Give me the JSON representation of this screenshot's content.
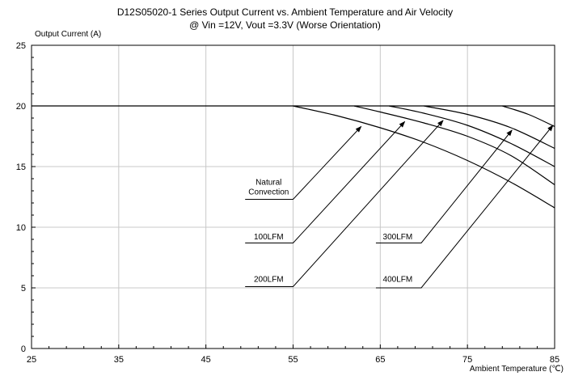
{
  "chart_data": {
    "type": "line",
    "title": "D12S05020-1 Series Output Current vs. Ambient Temperature and Air Velocity",
    "subtitle": "@ Vin =12V, Vout =3.3V (Worse Orientation)",
    "ylabel": "Output Current (A)",
    "xlabel": "Ambient Temperature (℃)",
    "xlim": [
      25,
      85
    ],
    "ylim": [
      0,
      25
    ],
    "x_ticks": [
      25,
      35,
      45,
      55,
      65,
      75,
      85
    ],
    "y_ticks": [
      0,
      5,
      10,
      15,
      20,
      25
    ],
    "grid": true,
    "series": [
      {
        "name": "Natural Convection",
        "x": [
          55,
          60,
          65,
          70,
          75,
          80,
          85
        ],
        "y": [
          20,
          19.2,
          18.2,
          17.0,
          15.5,
          13.7,
          11.6
        ]
      },
      {
        "name": "100LFM",
        "x": [
          62,
          65,
          70,
          75,
          80,
          85
        ],
        "y": [
          20,
          19.5,
          18.6,
          17.5,
          15.9,
          13.5
        ]
      },
      {
        "name": "200LFM",
        "x": [
          66,
          70,
          75,
          80,
          85
        ],
        "y": [
          20,
          19.4,
          18.4,
          16.9,
          15.0
        ]
      },
      {
        "name": "300LFM",
        "x": [
          70,
          75,
          80,
          85
        ],
        "y": [
          20,
          19.3,
          18.2,
          16.5
        ]
      },
      {
        "name": "400LFM",
        "x": [
          79,
          82,
          85
        ],
        "y": [
          20,
          19.3,
          18.3
        ]
      }
    ],
    "annotations": [
      {
        "lines": [
          "Natural",
          "Convection"
        ],
        "label_x": 52.2,
        "label_y": 12.7,
        "line": [
          [
            49.5,
            12.3
          ],
          [
            55,
            12.3
          ],
          [
            62.8,
            18.3
          ]
        ]
      },
      {
        "lines": [
          "100LFM"
        ],
        "label_x": 52.2,
        "label_y": 9.0,
        "line": [
          [
            49.5,
            8.7
          ],
          [
            55,
            8.7
          ],
          [
            67.8,
            18.7
          ]
        ]
      },
      {
        "lines": [
          "200LFM"
        ],
        "label_x": 52.2,
        "label_y": 5.5,
        "line": [
          [
            49.5,
            5.1
          ],
          [
            55,
            5.1
          ],
          [
            72.2,
            18.8
          ]
        ]
      },
      {
        "lines": [
          "300LFM"
        ],
        "label_x": 67.0,
        "label_y": 9.0,
        "line": [
          [
            64.5,
            8.7
          ],
          [
            69.7,
            8.7
          ],
          [
            80.1,
            18.0
          ]
        ]
      },
      {
        "lines": [
          "400LFM"
        ],
        "label_x": 67.0,
        "label_y": 5.5,
        "line": [
          [
            64.5,
            5.0
          ],
          [
            69.7,
            5.0
          ],
          [
            84.8,
            18.4
          ]
        ]
      }
    ]
  }
}
